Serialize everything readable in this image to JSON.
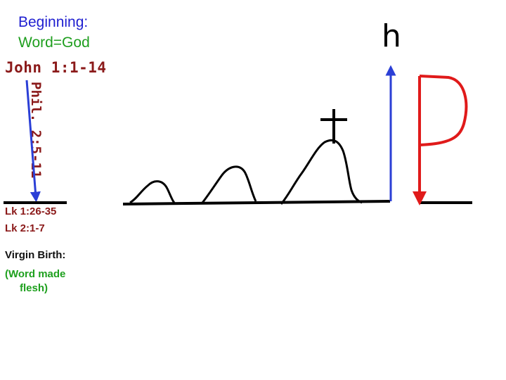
{
  "heading": {
    "line1": "Beginning:",
    "line2": "Word=God",
    "reference": "John 1:1-14"
  },
  "arrow_label": "Phil. 2:5-11",
  "notes": {
    "lk1": "Lk 1:26-35",
    "lk2": "Lk 2:1-7",
    "virgin_birth": "Virgin Birth:",
    "word_made_line1": "(Word made",
    "word_made_line2": "flesh)"
  },
  "letters": {
    "h": "h"
  },
  "colors": {
    "heading_blue": "#1f1fd0",
    "heading_green": "#1e9e1e",
    "reference_red": "#8b1a1a",
    "notes_red": "#8b1a1a",
    "notes_black": "#111111",
    "notes_green": "#1ea01e",
    "arrow_blue": "#2b3fd6",
    "p_red": "#e01a1a",
    "line_black": "#000000"
  }
}
